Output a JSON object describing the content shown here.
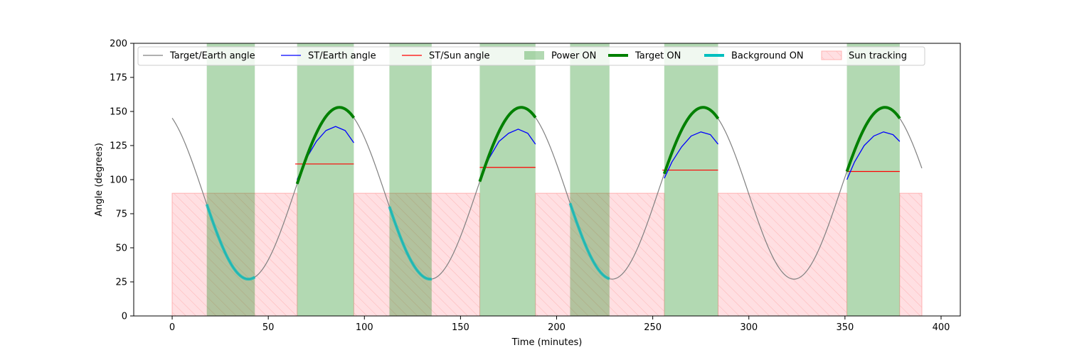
{
  "chart_data": {
    "type": "line",
    "title": "",
    "xlabel": "Time (minutes)",
    "ylabel": "Angle (degrees)",
    "xlim": [
      -20,
      410
    ],
    "ylim": [
      0,
      200
    ],
    "x_ticks": [
      0,
      50,
      100,
      150,
      200,
      250,
      300,
      350,
      400
    ],
    "y_ticks": [
      0,
      25,
      50,
      75,
      100,
      125,
      150,
      175,
      200
    ],
    "grid": false,
    "legend": {
      "placement": "top",
      "entries": [
        {
          "label": "Target/Earth angle",
          "kind": "line",
          "color": "#808080"
        },
        {
          "label": "ST/Earth angle",
          "kind": "line",
          "color": "#0000ff"
        },
        {
          "label": "ST/Sun angle",
          "kind": "line",
          "color": "#ff0000"
        },
        {
          "label": "Power ON",
          "kind": "patch",
          "color": "#008000"
        },
        {
          "label": "Target ON",
          "kind": "thick-line",
          "color": "#008000"
        },
        {
          "label": "Background ON",
          "kind": "thick-line",
          "color": "#00bfbf"
        },
        {
          "label": "Sun tracking",
          "kind": "hatch",
          "color": "#ff9999"
        }
      ]
    },
    "target_earth_model": {
      "center": 90,
      "amplitude": 63,
      "period": 94.6,
      "max_time": 87,
      "t_start": 0,
      "t_end": 390
    },
    "power_on_intervals": [
      [
        18,
        43
      ],
      [
        65,
        94.5
      ],
      [
        113,
        135
      ],
      [
        160,
        189
      ],
      [
        207,
        227.5
      ],
      [
        256,
        284
      ],
      [
        351,
        378.5
      ]
    ],
    "sun_tracking_intervals": [
      [
        0,
        65
      ],
      [
        94.5,
        160
      ],
      [
        189,
        256
      ],
      [
        284,
        351
      ],
      [
        378.5,
        390
      ]
    ],
    "sun_tracking_max": 90,
    "target_on_intervals": [
      [
        65,
        94.5
      ],
      [
        160,
        189
      ],
      [
        256,
        284
      ],
      [
        351,
        378.5
      ]
    ],
    "background_on_intervals": [
      [
        18,
        43
      ],
      [
        113,
        135
      ],
      [
        207,
        227.5
      ]
    ],
    "st_earth_segments": [
      {
        "x": [
          65,
          70,
          75,
          80,
          85,
          90,
          94.5
        ],
        "y": [
          100,
          116,
          128,
          136,
          139,
          136,
          127
        ]
      },
      {
        "x": [
          160,
          165,
          170,
          175,
          180,
          185,
          189
        ],
        "y": [
          100,
          116,
          128,
          134,
          137,
          134,
          126
        ]
      },
      {
        "x": [
          256,
          260,
          265,
          270,
          275,
          280,
          284
        ],
        "y": [
          101,
          113,
          124,
          132,
          135,
          133,
          126
        ]
      },
      {
        "x": [
          351,
          355,
          360,
          365,
          370,
          375,
          378.5
        ],
        "y": [
          100,
          113,
          125,
          132,
          135,
          133,
          128
        ]
      }
    ],
    "st_sun_segments": [
      {
        "x": [
          64,
          94.5
        ],
        "y": [
          111.5,
          111.5
        ]
      },
      {
        "x": [
          160,
          189
        ],
        "y": [
          109,
          109
        ]
      },
      {
        "x": [
          255,
          284
        ],
        "y": [
          107,
          107
        ]
      },
      {
        "x": [
          351,
          378.5
        ],
        "y": [
          106,
          106
        ]
      }
    ]
  }
}
